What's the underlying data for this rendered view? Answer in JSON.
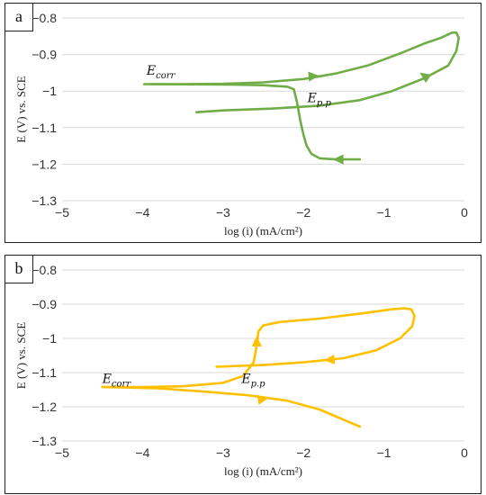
{
  "chart_data": [
    {
      "type": "line",
      "panel_label": "a",
      "xlabel": "log (i) (mA/cm²)",
      "ylabel": "E (V) vs. SCE",
      "xlim": [
        -5,
        0
      ],
      "ylim": [
        -1.3,
        -0.8
      ],
      "xticks": [
        "−5",
        "−4",
        "−3",
        "−2",
        "−1",
        "0"
      ],
      "yticks": [
        "−0.8",
        "−0.9",
        "−1",
        "−1.1",
        "−1.2",
        "−1.3"
      ],
      "grid": "horizontal",
      "color": "#70ad47",
      "annotations": [
        {
          "main": "E",
          "sub": "corr",
          "x": -3.95,
          "y": -0.955
        },
        {
          "main": "E",
          "sub": "p.p",
          "x": -1.95,
          "y": -1.03
        }
      ],
      "curve": [
        [
          -3.98,
          -0.981
        ],
        [
          -3.5,
          -0.981
        ],
        [
          -3.0,
          -0.98
        ],
        [
          -2.5,
          -0.976
        ],
        [
          -2.0,
          -0.967
        ],
        [
          -1.6,
          -0.952
        ],
        [
          -1.2,
          -0.93
        ],
        [
          -0.8,
          -0.897
        ],
        [
          -0.5,
          -0.87
        ],
        [
          -0.3,
          -0.855
        ],
        [
          -0.15,
          -0.84
        ],
        [
          -0.1,
          -0.84
        ],
        [
          -0.07,
          -0.855
        ],
        [
          -0.1,
          -0.89
        ],
        [
          -0.2,
          -0.93
        ],
        [
          -0.5,
          -0.965
        ],
        [
          -0.9,
          -1.0
        ],
        [
          -1.3,
          -1.025
        ],
        [
          -1.8,
          -1.04
        ],
        [
          -2.4,
          -1.048
        ],
        [
          -3.0,
          -1.053
        ],
        [
          -3.33,
          -1.058
        ]
      ],
      "branch": [
        [
          -3.9,
          -0.981
        ],
        [
          -3.0,
          -0.982
        ],
        [
          -2.5,
          -0.984
        ],
        [
          -2.2,
          -0.988
        ],
        [
          -2.12,
          -0.995
        ],
        [
          -2.08,
          -1.03
        ],
        [
          -2.04,
          -1.08
        ],
        [
          -2.0,
          -1.12
        ],
        [
          -1.96,
          -1.15
        ],
        [
          -1.9,
          -1.172
        ],
        [
          -1.8,
          -1.184
        ],
        [
          -1.6,
          -1.187
        ],
        [
          -1.3,
          -1.187
        ]
      ],
      "arrows": [
        {
          "x": -1.87,
          "y": -0.959,
          "angle": 5
        },
        {
          "x": -0.5,
          "y": -0.958,
          "angle": 145
        },
        {
          "x": -1.57,
          "y": -1.187,
          "angle": 180
        }
      ]
    },
    {
      "type": "line",
      "panel_label": "b",
      "xlabel": "log (i) (mA/cm²)",
      "ylabel": "E (V) vs. SCE",
      "xlim": [
        -5,
        0
      ],
      "ylim": [
        -1.3,
        -0.8
      ],
      "xticks": [
        "−5",
        "−4",
        "−3",
        "−2",
        "−1",
        "0"
      ],
      "yticks": [
        "−0.8",
        "−0.9",
        "−1",
        "−1.1",
        "−1.2",
        "−1.3"
      ],
      "grid": "horizontal",
      "color": "#ffc000",
      "annotations": [
        {
          "main": "E",
          "sub": "corr",
          "x": -4.5,
          "y": -1.13
        },
        {
          "main": "E",
          "sub": "p.p",
          "x": -2.77,
          "y": -1.13
        }
      ],
      "curve": [
        [
          -4.5,
          -1.142
        ],
        [
          -4.0,
          -1.142
        ],
        [
          -3.5,
          -1.14
        ],
        [
          -3.0,
          -1.13
        ],
        [
          -2.75,
          -1.11
        ],
        [
          -2.62,
          -1.07
        ],
        [
          -2.58,
          -1.02
        ],
        [
          -2.56,
          -0.98
        ],
        [
          -2.5,
          -0.962
        ],
        [
          -2.3,
          -0.952
        ],
        [
          -1.8,
          -0.942
        ],
        [
          -1.3,
          -0.928
        ],
        [
          -0.9,
          -0.915
        ],
        [
          -0.75,
          -0.912
        ],
        [
          -0.66,
          -0.915
        ],
        [
          -0.62,
          -0.935
        ],
        [
          -0.65,
          -0.965
        ],
        [
          -0.8,
          -1.0
        ],
        [
          -1.1,
          -1.035
        ],
        [
          -1.5,
          -1.058
        ],
        [
          -2.0,
          -1.07
        ],
        [
          -2.5,
          -1.078
        ],
        [
          -3.08,
          -1.083
        ]
      ],
      "branch": [
        [
          -4.5,
          -1.142
        ],
        [
          -3.8,
          -1.146
        ],
        [
          -3.2,
          -1.156
        ],
        [
          -2.7,
          -1.166
        ],
        [
          -2.2,
          -1.182
        ],
        [
          -1.8,
          -1.208
        ],
        [
          -1.5,
          -1.238
        ],
        [
          -1.3,
          -1.258
        ]
      ],
      "arrows": [
        {
          "x": -2.58,
          "y": -1.008,
          "angle": 90
        },
        {
          "x": -1.68,
          "y": -1.063,
          "angle": 185
        },
        {
          "x": -2.5,
          "y": -1.177,
          "angle": 10
        }
      ]
    }
  ]
}
